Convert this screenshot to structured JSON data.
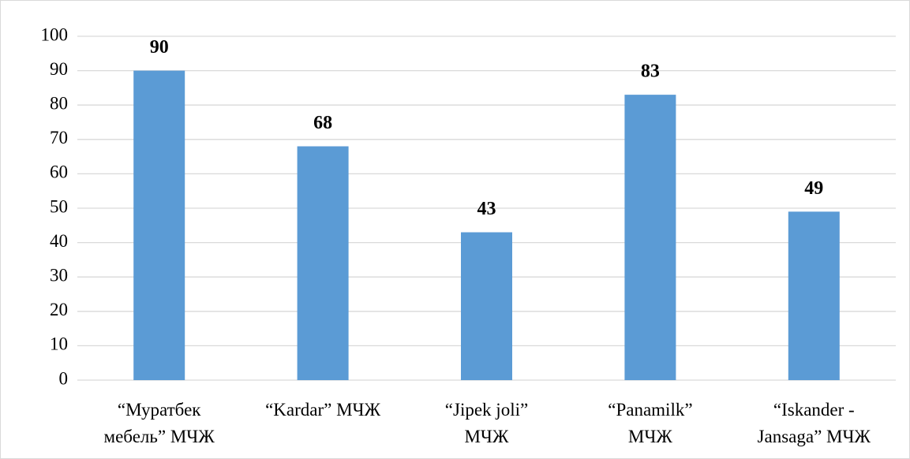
{
  "chart_data": {
    "type": "bar",
    "categories": [
      "“Муратбек\nмебель” МЧЖ",
      "“Kardar” МЧЖ",
      "“Jipek joli”\nМЧЖ",
      "“Panamilk”\nМЧЖ",
      "“Iskander -\nJansaga” МЧЖ"
    ],
    "values": [
      90,
      68,
      43,
      83,
      49
    ],
    "color": "#5b9bd5",
    "ylim": [
      0,
      100
    ],
    "yticks": [
      0,
      10,
      20,
      30,
      40,
      50,
      60,
      70,
      80,
      90,
      100
    ],
    "grid": true,
    "data_labels": true
  }
}
